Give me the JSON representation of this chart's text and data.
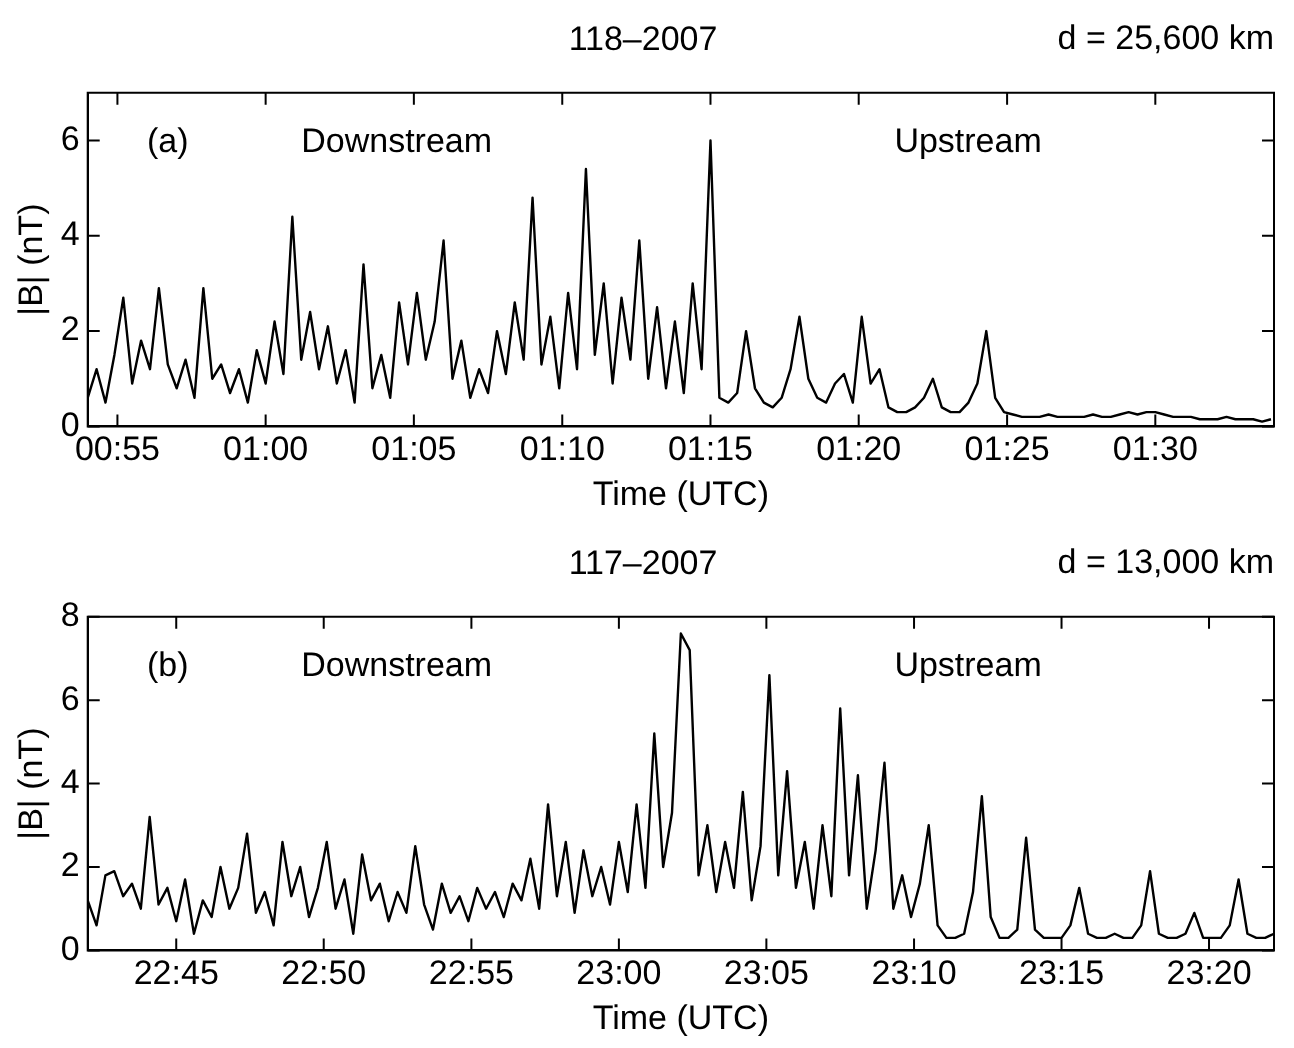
{
  "chart_data": [
    {
      "type": "line",
      "title": "118–2007",
      "xlabel": "Time (UTC)",
      "ylabel": "|B| (nT)",
      "annotations": [
        "(a)",
        "Downstream",
        "Upstream",
        "d = 25,600 km"
      ],
      "legend": false,
      "grid": false,
      "marker": "none",
      "line_style": "solid",
      "xlim": [
        0.9,
        1.5667
      ],
      "ylim": [
        0,
        7
      ],
      "yticks": [
        0,
        2,
        4,
        6
      ],
      "xticks": [
        {
          "value": 0.9167,
          "label": "00:55"
        },
        {
          "value": 1,
          "label": "01:00"
        },
        {
          "value": 1.0833,
          "label": "01:05"
        },
        {
          "value": 1.1667,
          "label": "01:10"
        },
        {
          "value": 1.25,
          "label": "01:15"
        },
        {
          "value": 1.3333,
          "label": "01:20"
        },
        {
          "value": 1.4167,
          "label": "01:25"
        },
        {
          "value": 1.5,
          "label": "01:30"
        }
      ],
      "series": [
        {
          "color": "#000000",
          "x": [
            0.9,
            0.905,
            0.91,
            0.915,
            0.92,
            0.925,
            0.93,
            0.935,
            0.94,
            0.945,
            0.95,
            0.955,
            0.96,
            0.965,
            0.97,
            0.975,
            0.98,
            0.985,
            0.99,
            0.995,
            1,
            1.005,
            1.01,
            1.015,
            1.02,
            1.025,
            1.03,
            1.035,
            1.04,
            1.045,
            1.05,
            1.055,
            1.06,
            1.065,
            1.07,
            1.075,
            1.08,
            1.085,
            1.09,
            1.095,
            1.1,
            1.105,
            1.11,
            1.115,
            1.12,
            1.125,
            1.13,
            1.135,
            1.14,
            1.145,
            1.15,
            1.155,
            1.16,
            1.165,
            1.17,
            1.175,
            1.18,
            1.185,
            1.19,
            1.195,
            1.2,
            1.205,
            1.21,
            1.215,
            1.22,
            1.225,
            1.23,
            1.235,
            1.24,
            1.245,
            1.25,
            1.255,
            1.26,
            1.265,
            1.27,
            1.275,
            1.28,
            1.285,
            1.29,
            1.295,
            1.3,
            1.305,
            1.31,
            1.315,
            1.32,
            1.325,
            1.33,
            1.335,
            1.34,
            1.345,
            1.35,
            1.355,
            1.36,
            1.365,
            1.37,
            1.375,
            1.38,
            1.385,
            1.39,
            1.395,
            1.4,
            1.405,
            1.41,
            1.415,
            1.42,
            1.425,
            1.43,
            1.435,
            1.44,
            1.445,
            1.45,
            1.455,
            1.46,
            1.465,
            1.47,
            1.475,
            1.48,
            1.485,
            1.49,
            1.495,
            1.5,
            1.505,
            1.51,
            1.515,
            1.52,
            1.525,
            1.53,
            1.535,
            1.54,
            1.545,
            1.55,
            1.555,
            1.56,
            1.565
          ],
          "values": [
            0.6,
            1.2,
            0.5,
            1.5,
            2.7,
            0.9,
            1.8,
            1.2,
            2.9,
            1.3,
            0.8,
            1.4,
            0.6,
            2.9,
            1.0,
            1.3,
            0.7,
            1.2,
            0.5,
            1.6,
            0.9,
            2.2,
            1.1,
            4.4,
            1.4,
            2.4,
            1.2,
            2.1,
            0.9,
            1.6,
            0.5,
            3.4,
            0.8,
            1.5,
            0.6,
            2.6,
            1.3,
            2.8,
            1.4,
            2.2,
            3.9,
            1.0,
            1.8,
            0.6,
            1.2,
            0.7,
            2.0,
            1.1,
            2.6,
            1.4,
            4.8,
            1.3,
            2.3,
            0.8,
            2.8,
            1.2,
            5.4,
            1.5,
            3.0,
            0.9,
            2.7,
            1.4,
            3.9,
            1.0,
            2.5,
            0.8,
            2.2,
            0.7,
            3.0,
            1.2,
            6.0,
            0.6,
            0.5,
            0.7,
            2.0,
            0.8,
            0.5,
            0.4,
            0.6,
            1.2,
            2.3,
            1.0,
            0.6,
            0.5,
            0.9,
            1.1,
            0.5,
            2.3,
            0.9,
            1.2,
            0.4,
            0.3,
            0.3,
            0.4,
            0.6,
            1.0,
            0.4,
            0.3,
            0.3,
            0.5,
            0.9,
            2.0,
            0.6,
            0.3,
            0.25,
            0.2,
            0.2,
            0.2,
            0.25,
            0.2,
            0.2,
            0.2,
            0.2,
            0.25,
            0.2,
            0.2,
            0.25,
            0.3,
            0.25,
            0.3,
            0.3,
            0.25,
            0.2,
            0.2,
            0.2,
            0.15,
            0.15,
            0.15,
            0.2,
            0.15,
            0.15,
            0.15,
            0.1,
            0.15
          ]
        }
      ]
    },
    {
      "type": "line",
      "title": "117–2007",
      "xlabel": "Time (UTC)",
      "ylabel": "|B| (nT)",
      "annotations": [
        "(b)",
        "Downstream",
        "Upstream",
        "d = 13,000 km"
      ],
      "legend": false,
      "grid": false,
      "marker": "none",
      "line_style": "solid",
      "xlim": [
        22.7,
        23.37
      ],
      "ylim": [
        0,
        8
      ],
      "yticks": [
        0,
        2,
        4,
        6,
        8
      ],
      "xticks": [
        {
          "value": 22.75,
          "label": "22:45"
        },
        {
          "value": 22.8333,
          "label": "22:50"
        },
        {
          "value": 22.9167,
          "label": "22:55"
        },
        {
          "value": 23,
          "label": "23:00"
        },
        {
          "value": 23.0833,
          "label": "23:05"
        },
        {
          "value": 23.1667,
          "label": "23:10"
        },
        {
          "value": 23.25,
          "label": "23:15"
        },
        {
          "value": 23.3333,
          "label": "23:20"
        }
      ],
      "series": [
        {
          "color": "#000000",
          "x": [
            22.7,
            22.705,
            22.71,
            22.715,
            22.72,
            22.725,
            22.73,
            22.735,
            22.74,
            22.745,
            22.75,
            22.755,
            22.76,
            22.765,
            22.77,
            22.775,
            22.78,
            22.785,
            22.79,
            22.795,
            22.8,
            22.805,
            22.81,
            22.815,
            22.82,
            22.825,
            22.83,
            22.835,
            22.84,
            22.845,
            22.85,
            22.855,
            22.86,
            22.865,
            22.87,
            22.875,
            22.88,
            22.885,
            22.89,
            22.895,
            22.9,
            22.905,
            22.91,
            22.915,
            22.92,
            22.925,
            22.93,
            22.935,
            22.94,
            22.945,
            22.95,
            22.955,
            22.96,
            22.965,
            22.97,
            22.975,
            22.98,
            22.985,
            22.99,
            22.995,
            23,
            23.005,
            23.01,
            23.015,
            23.02,
            23.025,
            23.03,
            23.035,
            23.04,
            23.045,
            23.05,
            23.055,
            23.06,
            23.065,
            23.07,
            23.075,
            23.08,
            23.085,
            23.09,
            23.095,
            23.1,
            23.105,
            23.11,
            23.115,
            23.12,
            23.125,
            23.13,
            23.135,
            23.14,
            23.145,
            23.15,
            23.155,
            23.16,
            23.165,
            23.17,
            23.175,
            23.18,
            23.185,
            23.19,
            23.195,
            23.2,
            23.205,
            23.21,
            23.215,
            23.22,
            23.225,
            23.23,
            23.235,
            23.24,
            23.245,
            23.25,
            23.255,
            23.26,
            23.265,
            23.27,
            23.275,
            23.28,
            23.285,
            23.29,
            23.295,
            23.3,
            23.305,
            23.31,
            23.315,
            23.32,
            23.325,
            23.33,
            23.335,
            23.34,
            23.345,
            23.35,
            23.355,
            23.36,
            23.365,
            23.37
          ],
          "values": [
            1.2,
            0.6,
            1.8,
            1.9,
            1.3,
            1.6,
            1.0,
            3.2,
            1.1,
            1.5,
            0.7,
            1.7,
            0.4,
            1.2,
            0.8,
            2.0,
            1.0,
            1.5,
            2.8,
            0.9,
            1.4,
            0.6,
            2.6,
            1.3,
            2.0,
            0.8,
            1.5,
            2.6,
            1.0,
            1.7,
            0.4,
            2.3,
            1.2,
            1.6,
            0.7,
            1.4,
            0.9,
            2.5,
            1.1,
            0.5,
            1.6,
            0.9,
            1.3,
            0.7,
            1.5,
            1.0,
            1.4,
            0.8,
            1.6,
            1.2,
            2.2,
            1.0,
            3.5,
            1.3,
            2.6,
            0.9,
            2.4,
            1.3,
            2.0,
            1.1,
            2.6,
            1.4,
            3.5,
            1.5,
            5.2,
            2.0,
            3.3,
            7.6,
            7.2,
            1.8,
            3.0,
            1.4,
            2.6,
            1.5,
            3.8,
            1.2,
            2.5,
            6.6,
            1.8,
            4.3,
            1.5,
            2.6,
            1.0,
            3.0,
            1.3,
            5.8,
            1.8,
            4.2,
            1.0,
            2.4,
            4.5,
            1.0,
            1.8,
            0.8,
            1.6,
            3.0,
            0.6,
            0.3,
            0.3,
            0.4,
            1.4,
            3.7,
            0.8,
            0.3,
            0.3,
            0.5,
            2.7,
            0.5,
            0.3,
            0.3,
            0.3,
            0.6,
            1.5,
            0.4,
            0.3,
            0.3,
            0.4,
            0.3,
            0.3,
            0.6,
            1.9,
            0.4,
            0.3,
            0.3,
            0.4,
            0.9,
            0.3,
            0.3,
            0.3,
            0.6,
            1.7,
            0.4,
            0.3,
            0.3,
            0.4
          ]
        }
      ]
    }
  ]
}
